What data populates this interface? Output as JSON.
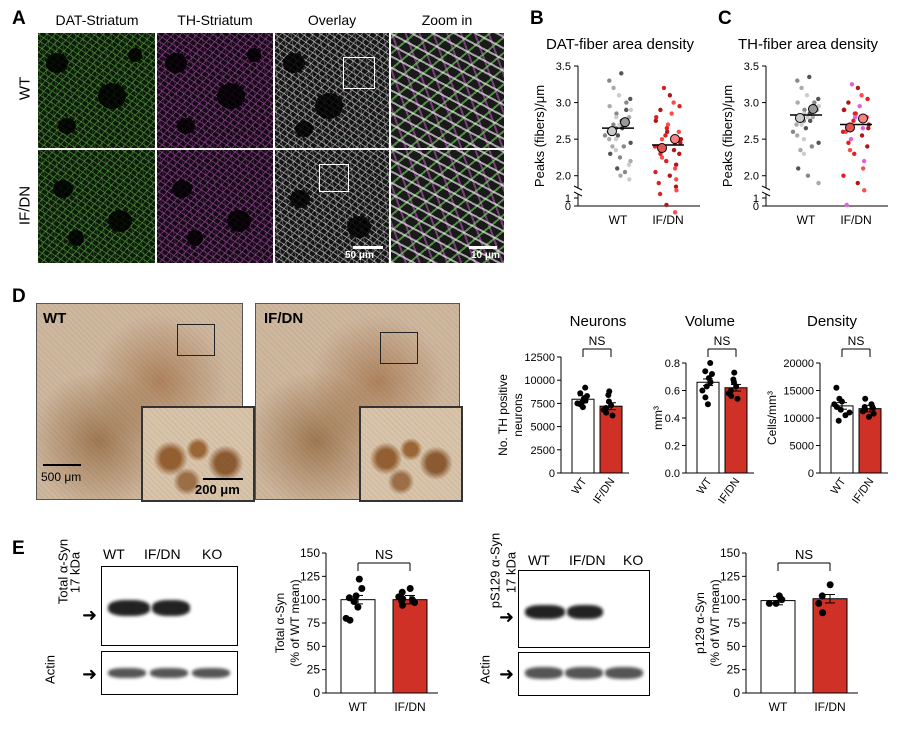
{
  "panels": {
    "A": {
      "label": "A",
      "columns": [
        "DAT-Striatum",
        "TH-Striatum",
        "Overlay",
        "Zoom in"
      ],
      "rows": [
        "WT",
        "IF/DN"
      ],
      "scale_overlay": "50 μm",
      "scale_zoom": "10 μm"
    },
    "B": {
      "label": "B",
      "title": "DAT-fiber area density",
      "ylabel": "Peaks (fibers)/μm"
    },
    "C": {
      "label": "C",
      "title": "TH-fiber area density",
      "ylabel": "Peaks (fibers)/μm"
    },
    "D": {
      "label": "D",
      "images": [
        "WT",
        "IF/DN"
      ],
      "scale_main": "500 μm",
      "scale_inset": "200 μm",
      "titles": [
        "Neurons",
        "Volume",
        "Density"
      ],
      "ylabels": [
        "No. TH positive neurons",
        "mm³",
        "Cells/mm³"
      ],
      "ns": "NS"
    },
    "E": {
      "label": "E",
      "blot1": {
        "ylabel": "Total α-Syn",
        "kda": "17 kDa",
        "lanes": [
          "WT",
          "IF/DN",
          "KO"
        ],
        "actin": "Actin"
      },
      "blot2": {
        "ylabel": "pS129 α-Syn",
        "kda": "17 kDa",
        "lanes": [
          "WT",
          "IF/DN",
          "KO"
        ],
        "actin": "Actin"
      },
      "chart1_ylabel_1": "Total α-Syn",
      "chart1_ylabel_2": "(% of WT mean)",
      "chart2_ylabel_1": "p129 α-Syn",
      "chart2_ylabel_2": "(% of WT mean)",
      "ns": "NS"
    }
  },
  "colors": {
    "wt": "#ffffff",
    "ifdn": "#d03127",
    "wt_dots": "#777777",
    "ifdn_dots": "#e02020",
    "ifdn_pink": "#e060e0"
  },
  "chart_data": [
    {
      "type": "scatter",
      "title": "DAT-fiber area density",
      "ylabel": "Peaks (fibers)/μm",
      "categories": [
        "WT",
        "IF/DN"
      ],
      "ylim": [
        0,
        3.5
      ],
      "yticks": [
        "0",
        "1",
        "2.0",
        "2.5",
        "3.0",
        "3.5"
      ],
      "series": [
        {
          "name": "WT",
          "mean": 2.65,
          "values": [
            3.4,
            3.3,
            3.2,
            3.1,
            3.05,
            3.0,
            2.95,
            2.9,
            2.9,
            2.85,
            2.8,
            2.8,
            2.75,
            2.7,
            2.7,
            2.7,
            2.65,
            2.65,
            2.6,
            2.6,
            2.55,
            2.55,
            2.5,
            2.5,
            2.45,
            2.4,
            2.4,
            2.35,
            2.3,
            2.25,
            2.2,
            2.15,
            2.1,
            2.05,
            2.0,
            1.95
          ]
        },
        {
          "name": "IF/DN",
          "mean": 2.42,
          "values": [
            3.2,
            3.1,
            3.0,
            2.95,
            2.9,
            2.85,
            2.8,
            2.75,
            2.7,
            2.65,
            2.6,
            2.6,
            2.55,
            2.5,
            2.5,
            2.45,
            2.45,
            2.4,
            2.4,
            2.35,
            2.35,
            2.3,
            2.3,
            2.25,
            2.2,
            2.15,
            2.1,
            2.05,
            2.0,
            1.95,
            1.9,
            1.85,
            1.8,
            1.75,
            1.6,
            1.5
          ]
        }
      ]
    },
    {
      "type": "scatter",
      "title": "TH-fiber area density",
      "ylabel": "Peaks (fibers)/μm",
      "categories": [
        "WT",
        "IF/DN"
      ],
      "ylim": [
        0,
        3.5
      ],
      "yticks": [
        "0",
        "1",
        "2.0",
        "2.5",
        "3.0",
        "3.5"
      ],
      "series": [
        {
          "name": "WT",
          "mean": 2.83,
          "values": [
            3.35,
            3.3,
            3.2,
            3.1,
            3.05,
            3.0,
            3.0,
            2.95,
            2.95,
            2.9,
            2.9,
            2.85,
            2.85,
            2.8,
            2.8,
            2.8,
            2.75,
            2.75,
            2.7,
            2.7,
            2.65,
            2.6,
            2.55,
            2.5,
            2.45,
            2.4,
            2.35,
            2.3,
            2.1,
            2.0,
            1.9
          ]
        },
        {
          "name": "IF/DN",
          "mean": 2.7,
          "values": [
            3.25,
            3.2,
            3.1,
            3.05,
            3.0,
            2.95,
            2.9,
            2.9,
            2.85,
            2.85,
            2.8,
            2.8,
            2.75,
            2.7,
            2.7,
            2.65,
            2.65,
            2.6,
            2.6,
            2.55,
            2.5,
            2.45,
            2.4,
            2.35,
            2.3,
            2.2,
            2.1,
            2.0,
            1.9,
            1.8,
            1.6
          ]
        }
      ]
    },
    {
      "type": "bar",
      "title": "Neurons",
      "ylabel": "No. TH positive neurons",
      "categories": [
        "WT",
        "IF/DN"
      ],
      "ylim": [
        0,
        12500
      ],
      "yticks": [
        "0",
        "2500",
        "5000",
        "7500",
        "10000",
        "12500"
      ],
      "values": [
        7950,
        7200
      ],
      "points": [
        [
          9200,
          8600,
          8300,
          8000,
          7800,
          7600,
          7500,
          7400,
          7100
        ],
        [
          8800,
          8400,
          7700,
          7300,
          7000,
          6800,
          6500,
          6200
        ]
      ]
    },
    {
      "type": "bar",
      "title": "Volume",
      "ylabel": "mm³",
      "categories": [
        "WT",
        "IF/DN"
      ],
      "ylim": [
        0,
        0.8
      ],
      "yticks": [
        "0.0",
        "0.2",
        "0.4",
        "0.6",
        "0.8"
      ],
      "values": [
        0.66,
        0.62
      ],
      "points": [
        [
          0.8,
          0.74,
          0.72,
          0.69,
          0.66,
          0.63,
          0.6,
          0.55,
          0.5
        ],
        [
          0.73,
          0.68,
          0.66,
          0.63,
          0.6,
          0.58,
          0.56,
          0.54
        ]
      ]
    },
    {
      "type": "bar",
      "title": "Density",
      "ylabel": "Cells/mm³",
      "categories": [
        "WT",
        "IF/DN"
      ],
      "ylim": [
        0,
        20000
      ],
      "yticks": [
        "0",
        "5000",
        "10000",
        "15000",
        "20000"
      ],
      "values": [
        12200,
        11700
      ],
      "points": [
        [
          15500,
          13500,
          13000,
          12500,
          12000,
          11500,
          11000,
          10500,
          9500
        ],
        [
          13500,
          12500,
          12000,
          11800,
          11500,
          11200,
          10800,
          10200
        ]
      ]
    },
    {
      "type": "bar",
      "title": "",
      "ylabel": "Total α-Syn (% of WT mean)",
      "categories": [
        "WT",
        "IF/DN"
      ],
      "ylim": [
        0,
        150
      ],
      "yticks": [
        "0",
        "25",
        "50",
        "75",
        "100",
        "125",
        "150"
      ],
      "values": [
        100,
        100
      ],
      "points": [
        [
          122,
          112,
          104,
          102,
          98,
          92,
          80,
          78
        ],
        [
          112,
          108,
          103,
          101,
          100,
          98,
          97,
          94
        ]
      ]
    },
    {
      "type": "bar",
      "title": "",
      "ylabel": "p129 α-Syn (% of WT mean)",
      "categories": [
        "WT",
        "IF/DN"
      ],
      "ylim": [
        0,
        150
      ],
      "yticks": [
        "0",
        "25",
        "50",
        "75",
        "100",
        "125",
        "150"
      ],
      "values": [
        99,
        101
      ],
      "points": [
        [
          104,
          100,
          96,
          96
        ],
        [
          116,
          104,
          96,
          86
        ]
      ]
    }
  ]
}
